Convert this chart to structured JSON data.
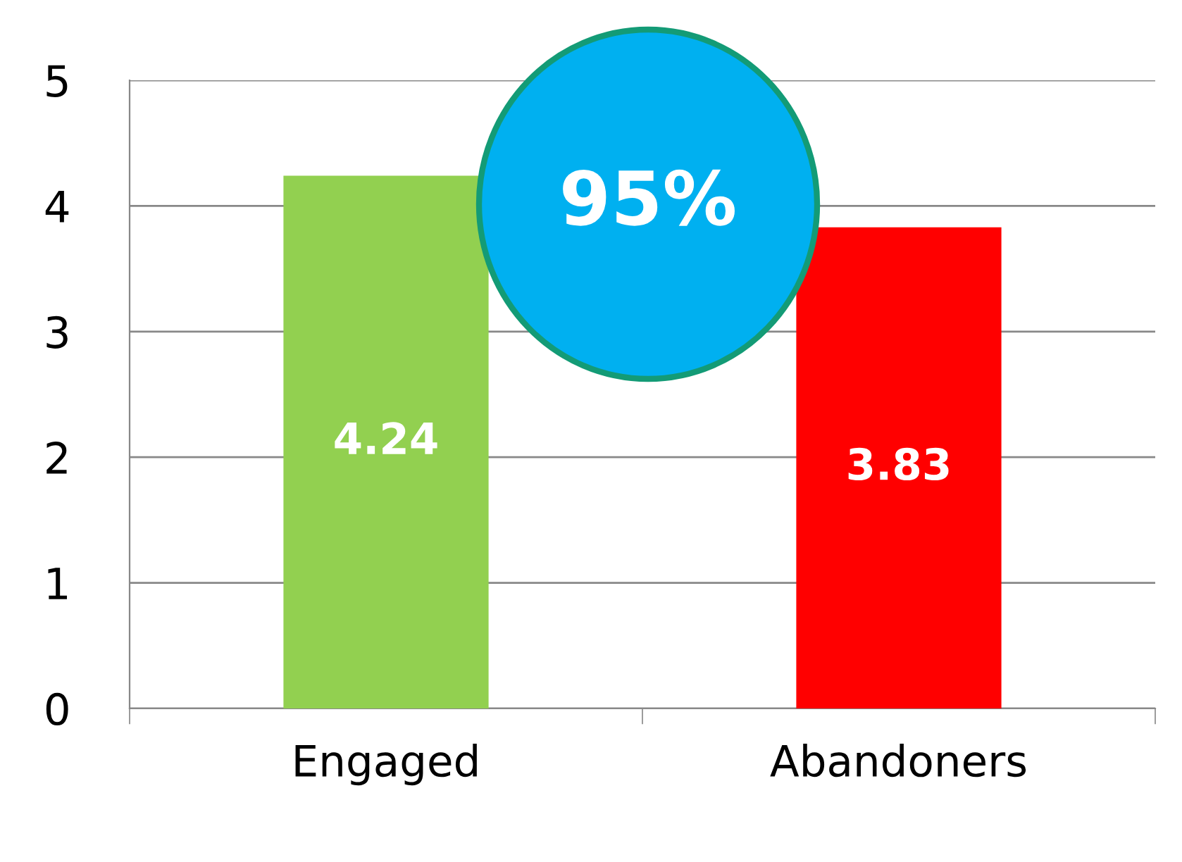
{
  "chart_data": {
    "type": "bar",
    "categories": [
      "Engaged",
      "Abandoners"
    ],
    "values": [
      4.24,
      3.83
    ],
    "colors": [
      "#92d050",
      "#ff0000"
    ],
    "ylim": [
      0,
      5
    ],
    "yticks": [
      0,
      1,
      2,
      3,
      4,
      5
    ],
    "grid": "y",
    "data_labels": true,
    "legend": false,
    "annotations": [
      "95%"
    ]
  }
}
